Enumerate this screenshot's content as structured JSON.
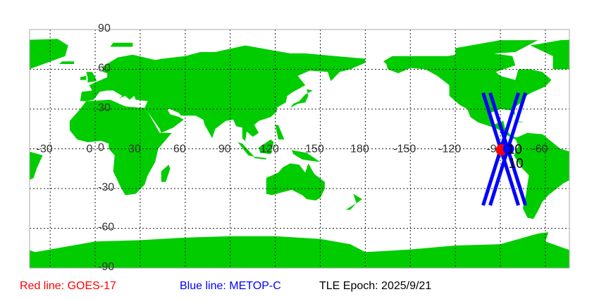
{
  "map": {
    "land_color": "#00cc00",
    "ocean_color": "#ffffff",
    "grid": true,
    "lon_range": [
      -43.7,
      316
    ],
    "lat_range": [
      -90,
      90
    ],
    "lon_labels": [
      "-30",
      "0",
      "30",
      "60",
      "90",
      "120",
      "150",
      "180",
      "-150",
      "-120",
      "-90",
      "-60"
    ],
    "lat_labels": [
      "90",
      "60",
      "30",
      "0",
      "-30",
      "-60",
      "-90"
    ]
  },
  "satellites": {
    "track_color": "#0000ff",
    "tracks": [
      {
        "from": [
          -101.5,
          42.2
        ],
        "to": [
          -78.0,
          -42.7
        ]
      },
      {
        "from": [
          -96.8,
          42.2
        ],
        "to": [
          -73.3,
          -42.7
        ]
      },
      {
        "from": [
          -78.0,
          42.2
        ],
        "to": [
          -101.5,
          -42.7
        ]
      },
      {
        "from": [
          -73.3,
          42.2
        ],
        "to": [
          -96.8,
          -42.7
        ]
      }
    ],
    "markers": [
      {
        "color": "#0000ff",
        "lon": -88.4,
        "lat": 0.0
      },
      {
        "color": "#ff0000",
        "lon": -89.3,
        "lat": -0.8
      },
      {
        "color": "#0000ff",
        "lon": -84.6,
        "lat": 0.0
      }
    ],
    "marker_labels": [
      {
        "text": "10",
        "lon": -80.5,
        "lat": 0.0
      },
      {
        "text": "10",
        "lon": -79.6,
        "lat": 0.0
      }
    ]
  },
  "legend": {
    "red": {
      "text": "Red line: GOES-17",
      "color": "#ff0000"
    },
    "blue": {
      "text": "Blue line: METOP-C",
      "color": "#0000ff"
    },
    "epoch": "TLE Epoch: 2025/9/21"
  }
}
